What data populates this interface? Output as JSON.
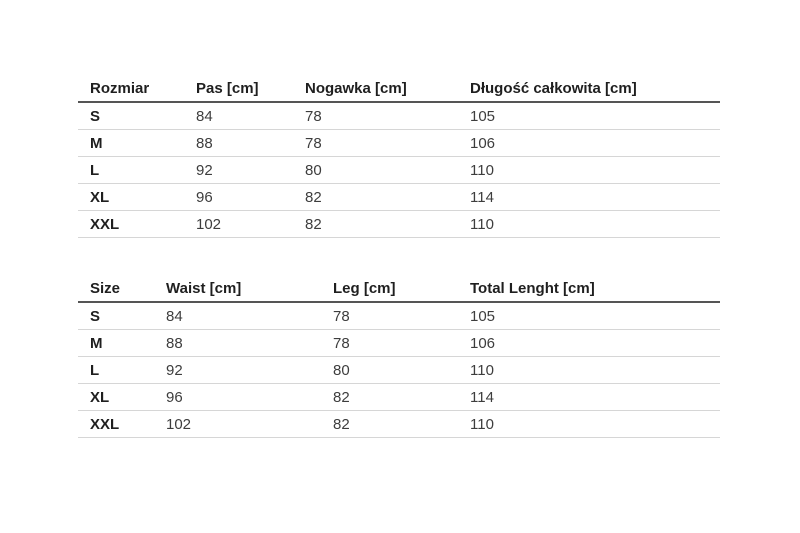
{
  "page": {
    "background_color": "#ffffff"
  },
  "style": {
    "header_text_color": "#1f1f1f",
    "value_text_color": "#3d3d3d",
    "header_border_color": "#555555",
    "row_border_color": "#d6d6d6"
  },
  "tables": [
    {
      "name": "size-table-polish",
      "headers": [
        "Rozmiar",
        "Pas [cm]",
        "Nogawka [cm]",
        "Długość całkowita [cm]"
      ],
      "rows": [
        [
          "S",
          "84",
          "78",
          "105"
        ],
        [
          "M",
          "88",
          "78",
          "106"
        ],
        [
          "L",
          "92",
          "80",
          "110"
        ],
        [
          "XL",
          "96",
          "82",
          "114"
        ],
        [
          "XXL",
          "102",
          "82",
          "110"
        ]
      ]
    },
    {
      "name": "size-table-english",
      "headers": [
        "Size",
        "Waist [cm]",
        "Leg [cm]",
        "Total Lenght [cm]"
      ],
      "rows": [
        [
          "S",
          "84",
          "78",
          "105"
        ],
        [
          "M",
          "88",
          "78",
          "106"
        ],
        [
          "L",
          "92",
          "80",
          "110"
        ],
        [
          "XL",
          "96",
          "82",
          "114"
        ],
        [
          "XXL",
          "102",
          "82",
          "110"
        ]
      ]
    }
  ]
}
